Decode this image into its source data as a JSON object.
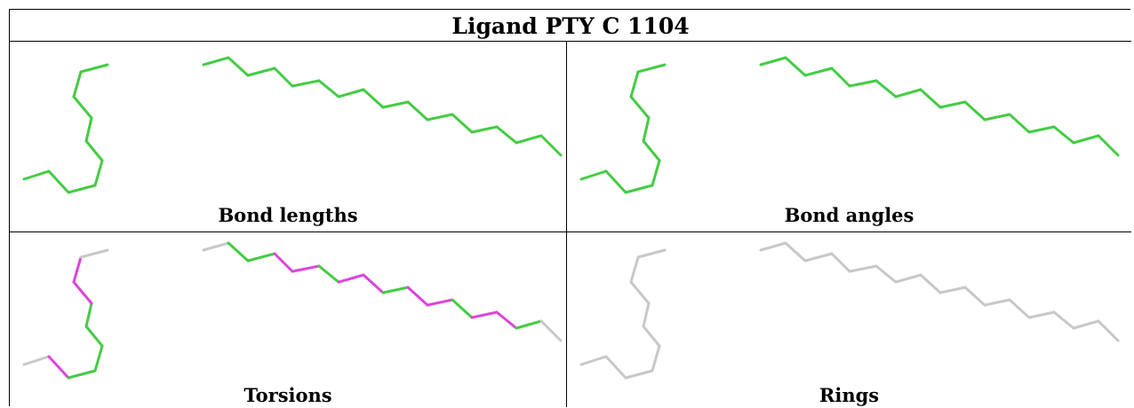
{
  "title": "Ligand PTY C 1104",
  "panels": [
    {
      "caption": "Bond lengths",
      "coloring": "all-green"
    },
    {
      "caption": "Bond angles",
      "coloring": "all-green"
    },
    {
      "caption": "Torsions",
      "coloring": "mixed-green-magenta"
    },
    {
      "caption": "Rings",
      "coloring": "all-grey"
    }
  ],
  "colors": {
    "green": "#44cc44",
    "magenta": "#dd44dd",
    "grey": "#c8c8c8",
    "border": "#000000"
  }
}
